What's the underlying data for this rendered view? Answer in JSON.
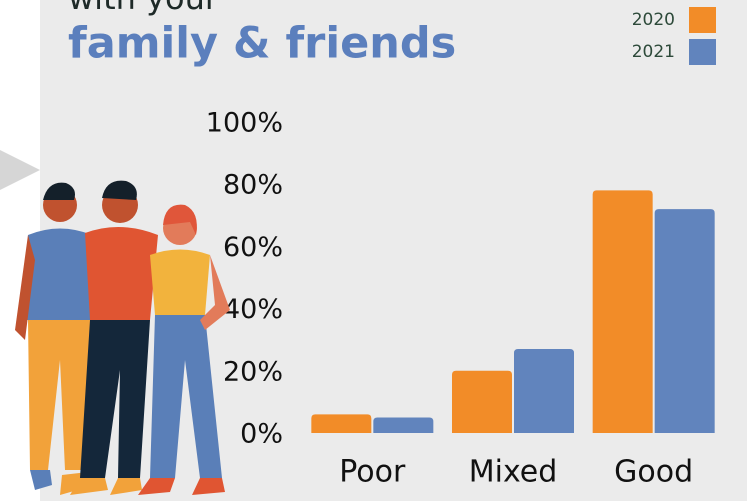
{
  "chart_data": {
    "type": "bar",
    "title_lead": "with your",
    "title": "family & friends",
    "categories": [
      "Poor",
      "Mixed",
      "Good"
    ],
    "series": [
      {
        "name": "2020",
        "color": "#f28c28",
        "values": [
          6,
          20,
          78
        ]
      },
      {
        "name": "2021",
        "color": "#6184bd",
        "values": [
          5,
          27,
          72
        ]
      }
    ],
    "ylim": [
      0,
      100
    ],
    "yticks": [
      {
        "value": 0,
        "label": "0%"
      },
      {
        "value": 20,
        "label": "20%"
      },
      {
        "value": 40,
        "label": "40%"
      },
      {
        "value": 60,
        "label": "60%"
      },
      {
        "value": 80,
        "label": "80%"
      },
      {
        "value": 100,
        "label": "100%"
      }
    ],
    "grid": false,
    "legend": "top-right"
  }
}
